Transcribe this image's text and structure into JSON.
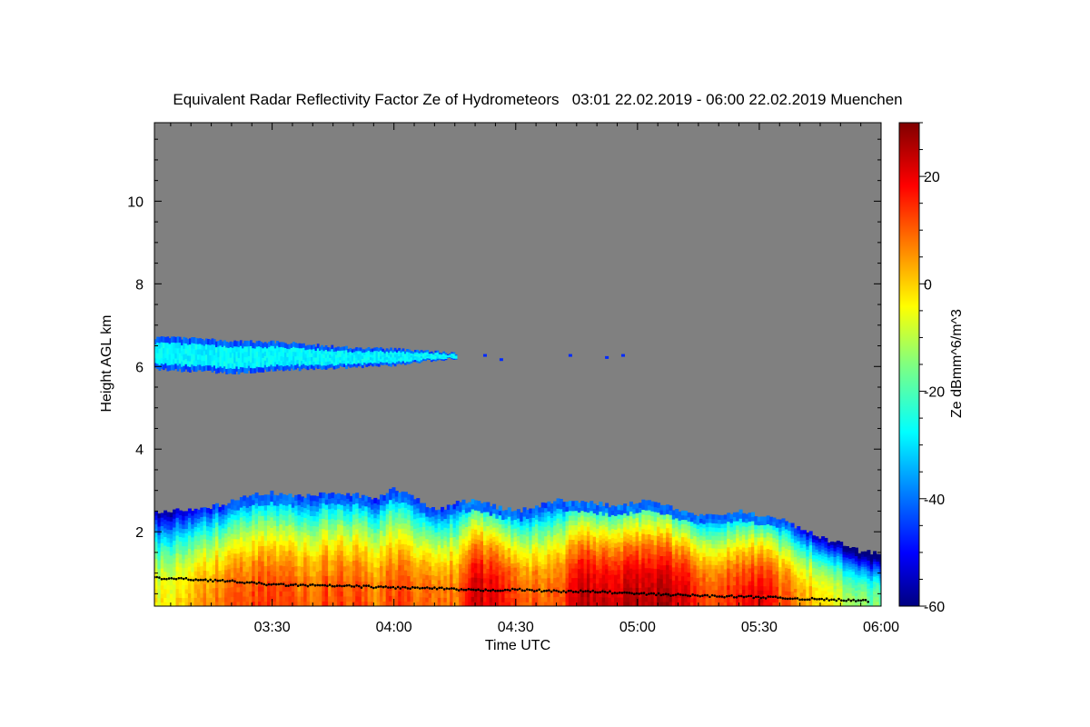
{
  "chart_data": {
    "type": "heatmap",
    "title": "Equivalent Radar Reflectivity Factor Ze of Hydrometeors   03:01 22.02.2019 - 06:00 22.02.2019 Muenchen",
    "xlabel": "Time UTC",
    "ylabel": "Height AGL km",
    "colorbar_label": "Ze dBmm^6/m^3",
    "x_unit": "minutes after 03:00 UTC",
    "xlim": [
      1,
      180
    ],
    "ylim": [
      0.2,
      11.9
    ],
    "clim": [
      -60,
      30
    ],
    "x_ticks": [
      {
        "value": 30,
        "label": "03:30"
      },
      {
        "value": 60,
        "label": "04:00"
      },
      {
        "value": 90,
        "label": "04:30"
      },
      {
        "value": 120,
        "label": "05:00"
      },
      {
        "value": 150,
        "label": "05:30"
      },
      {
        "value": 180,
        "label": "06:00"
      }
    ],
    "y_ticks": [
      {
        "value": 2,
        "label": "2"
      },
      {
        "value": 4,
        "label": "4"
      },
      {
        "value": 6,
        "label": "6"
      },
      {
        "value": 8,
        "label": "8"
      },
      {
        "value": 10,
        "label": "10"
      }
    ],
    "colorbar_ticks": [
      {
        "value": 20,
        "label": "20"
      },
      {
        "value": 0,
        "label": "0"
      },
      {
        "value": -20,
        "label": "-20"
      },
      {
        "value": -40,
        "label": "-40"
      },
      {
        "value": -60,
        "label": "-60"
      }
    ],
    "upper_cloud": {
      "description_values": "thin ice layer near 6 km AGL, Ze about -30 dBZ",
      "time": [
        1,
        10,
        20,
        30,
        40,
        50,
        60,
        68,
        75
      ],
      "top_km": [
        6.7,
        6.68,
        6.6,
        6.6,
        6.52,
        6.45,
        6.42,
        6.38,
        6.3
      ],
      "base_km": [
        5.95,
        5.9,
        5.85,
        5.92,
        5.95,
        6.0,
        6.05,
        6.15,
        6.2
      ],
      "fragments": [
        {
          "time": 82,
          "height_km": 6.25
        },
        {
          "time": 86,
          "height_km": 6.15
        },
        {
          "time": 103,
          "height_km": 6.25
        },
        {
          "time": 112,
          "height_km": 6.2
        },
        {
          "time": 116,
          "height_km": 6.25
        }
      ]
    },
    "precip_layer": {
      "time": [
        1,
        5,
        10,
        15,
        20,
        25,
        30,
        35,
        40,
        45,
        50,
        55,
        60,
        65,
        70,
        75,
        80,
        85,
        90,
        95,
        100,
        105,
        110,
        115,
        120,
        125,
        130,
        135,
        140,
        145,
        150,
        155,
        160,
        165,
        170,
        175,
        180
      ],
      "top_km": [
        2.5,
        2.5,
        2.55,
        2.6,
        2.75,
        2.9,
        2.95,
        2.85,
        2.9,
        2.95,
        2.9,
        2.8,
        3.05,
        2.8,
        2.5,
        2.7,
        2.75,
        2.6,
        2.5,
        2.6,
        2.8,
        2.7,
        2.7,
        2.6,
        2.75,
        2.7,
        2.5,
        2.4,
        2.45,
        2.5,
        2.4,
        2.3,
        2.05,
        1.85,
        1.7,
        1.5,
        1.5
      ],
      "peak_dbz": [
        -5,
        -3,
        3,
        8,
        10,
        12,
        16,
        10,
        11,
        13,
        12,
        9,
        14,
        11,
        8,
        10,
        24,
        20,
        12,
        10,
        10,
        22,
        24,
        22,
        24,
        26,
        22,
        14,
        13,
        19,
        20,
        12,
        6,
        -2,
        -8,
        -15,
        -16
      ]
    },
    "melting_layer": {
      "time": [
        1,
        10,
        20,
        30,
        40,
        50,
        60,
        70,
        80,
        90,
        100,
        110,
        120,
        130,
        140,
        150,
        160,
        170,
        177
      ],
      "height_km": [
        0.88,
        0.85,
        0.8,
        0.72,
        0.7,
        0.68,
        0.65,
        0.63,
        0.58,
        0.6,
        0.56,
        0.55,
        0.5,
        0.47,
        0.44,
        0.42,
        0.38,
        0.35,
        0.32
      ]
    },
    "background_color": "#808080"
  }
}
